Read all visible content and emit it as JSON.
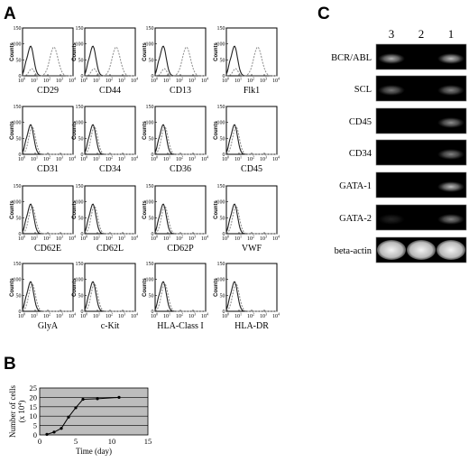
{
  "panels": {
    "a": {
      "letter": "A",
      "y_axis_label": "Counts",
      "y_ticks": [
        "0",
        "50",
        "100",
        "150"
      ],
      "x_tick_base": "10",
      "x_tick_exponents": [
        "0",
        "1",
        "2",
        "3",
        "4"
      ],
      "curve_colors": {
        "control": "#222222",
        "stained": "#8a8a8a"
      },
      "histograms": [
        {
          "marker": "CD29",
          "shift": true
        },
        {
          "marker": "CD44",
          "shift": true
        },
        {
          "marker": "CD13",
          "shift": true
        },
        {
          "marker": "Flk1",
          "shift": true
        },
        {
          "marker": "CD31",
          "shift": false
        },
        {
          "marker": "CD34",
          "shift": false
        },
        {
          "marker": "CD36",
          "shift": false
        },
        {
          "marker": "CD45",
          "shift": false
        },
        {
          "marker": "CD62E",
          "shift": false
        },
        {
          "marker": "CD62L",
          "shift": false
        },
        {
          "marker": "CD62P",
          "shift": false
        },
        {
          "marker": "VWF",
          "shift": false
        },
        {
          "marker": "GlyA",
          "shift": false
        },
        {
          "marker": "c-Kit",
          "shift": false
        },
        {
          "marker": "HLA-Class I",
          "shift": false
        },
        {
          "marker": "HLA-DR",
          "shift": false
        }
      ]
    },
    "b": {
      "letter": "B",
      "chart_data": {
        "type": "line",
        "title": "",
        "xlabel": "Time (day)",
        "ylabel_lines": [
          "Number of cells",
          "(x 10",
          "4",
          ")"
        ],
        "x": [
          1,
          2,
          3,
          4,
          5,
          6,
          8,
          11
        ],
        "y": [
          0.3,
          1.5,
          3.5,
          9.5,
          14.5,
          19.0,
          19.3,
          20.0
        ],
        "xlim": [
          0,
          15
        ],
        "ylim": [
          0,
          25
        ],
        "x_ticks": [
          0,
          5,
          10,
          15
        ],
        "y_ticks": [
          0,
          5,
          10,
          15,
          20,
          25
        ],
        "grid": true,
        "plot_background": "#bdbdbd"
      }
    },
    "c": {
      "letter": "C",
      "lanes": [
        "3",
        "2",
        "1"
      ],
      "rows": [
        {
          "gene": "BCR/ABL",
          "bands": [
            0.75,
            0,
            0.8
          ]
        },
        {
          "gene": "SCL",
          "bands": [
            0.5,
            0,
            0.55
          ]
        },
        {
          "gene": "CD45",
          "bands": [
            0,
            0,
            0.6
          ]
        },
        {
          "gene": "CD34",
          "bands": [
            0,
            0,
            0.55
          ]
        },
        {
          "gene": "GATA-1",
          "bands": [
            0,
            0,
            0.8
          ]
        },
        {
          "gene": "GATA-2",
          "bands": [
            0.15,
            0,
            0.55
          ]
        },
        {
          "gene": "beta-actin",
          "bands": [
            1,
            1,
            1
          ]
        }
      ]
    }
  }
}
